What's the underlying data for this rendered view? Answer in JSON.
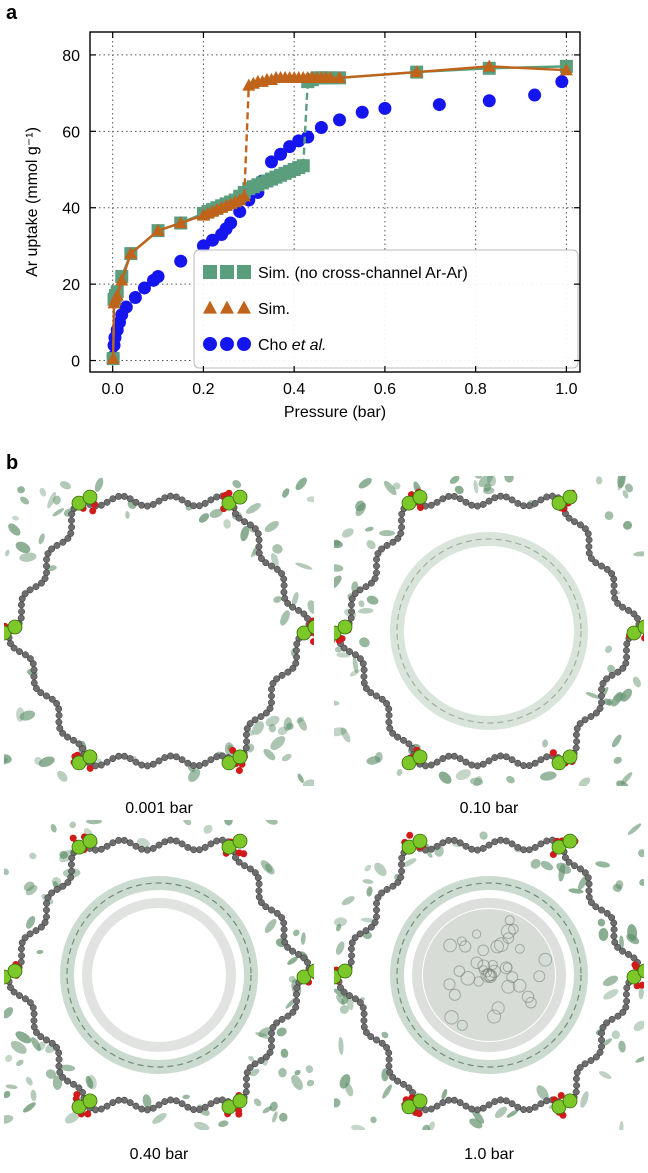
{
  "panel_labels": {
    "a": "a",
    "b": "b"
  },
  "chart_data": {
    "type": "line",
    "xlabel": "Pressure (bar)",
    "ylabel": "Ar uptake (mmol g⁻¹)",
    "xlim": [
      -0.05,
      1.03
    ],
    "ylim": [
      -3,
      86
    ],
    "xticks": [
      0.0,
      0.2,
      0.4,
      0.6,
      0.8,
      1.0
    ],
    "xtick_labels": [
      "0.0",
      "0.2",
      "0.4",
      "0.6",
      "0.8",
      "1.0"
    ],
    "yticks": [
      0,
      20,
      40,
      60,
      80
    ],
    "ytick_labels": [
      "0",
      "20",
      "40",
      "60",
      "80"
    ],
    "grid": true,
    "grid_style": "dotted",
    "legend_position": "lower-right",
    "series": [
      {
        "name": "Sim. (no cross-channel Ar-Ar)",
        "color": "#5a9e7e",
        "marker": "square",
        "x": [
          0.001,
          0.003,
          0.006,
          0.01,
          0.02,
          0.04,
          0.1,
          0.15,
          0.2,
          0.21,
          0.22,
          0.23,
          0.24,
          0.25,
          0.26,
          0.27,
          0.28,
          0.29,
          0.3,
          0.31,
          0.32,
          0.33,
          0.34,
          0.35,
          0.36,
          0.37,
          0.38,
          0.39,
          0.4,
          0.41,
          0.42,
          0.43,
          0.44,
          0.45,
          0.46,
          0.47,
          0.48,
          0.5,
          0.67,
          0.83,
          1.0
        ],
        "y": [
          0.5,
          16,
          17,
          18,
          22,
          28,
          34,
          36,
          38.5,
          39,
          39.5,
          40,
          40.5,
          41,
          41.5,
          42,
          43,
          44,
          45,
          45.5,
          46,
          46.5,
          47,
          47.5,
          48,
          48.5,
          49,
          49.5,
          50,
          50.5,
          51,
          73,
          73.5,
          74,
          74,
          74,
          74,
          74,
          75.5,
          76.5,
          77
        ]
      },
      {
        "name": "Sim.",
        "color": "#c0631b",
        "marker": "triangle",
        "x": [
          0.001,
          0.003,
          0.006,
          0.01,
          0.02,
          0.04,
          0.1,
          0.15,
          0.2,
          0.21,
          0.22,
          0.23,
          0.24,
          0.25,
          0.26,
          0.27,
          0.28,
          0.29,
          0.3,
          0.31,
          0.32,
          0.33,
          0.34,
          0.35,
          0.36,
          0.37,
          0.38,
          0.39,
          0.4,
          0.41,
          0.42,
          0.43,
          0.44,
          0.45,
          0.46,
          0.47,
          0.48,
          0.5,
          0.67,
          0.83,
          1.0
        ],
        "y": [
          0.5,
          15,
          16,
          17,
          21,
          28,
          34,
          36,
          38,
          38.5,
          39,
          39.5,
          40,
          40.5,
          41,
          41.5,
          42,
          43,
          72,
          72.5,
          73,
          73,
          73.5,
          73.5,
          74,
          74,
          74,
          74,
          74,
          74,
          74,
          74,
          74,
          74,
          74,
          74,
          74,
          74,
          75.5,
          77,
          76
        ]
      },
      {
        "name": "Cho et al.",
        "color": "#1515f0",
        "marker": "circle",
        "x": [
          0.001,
          0.003,
          0.005,
          0.01,
          0.015,
          0.02,
          0.03,
          0.05,
          0.07,
          0.09,
          0.1,
          0.15,
          0.2,
          0.22,
          0.24,
          0.25,
          0.26,
          0.28,
          0.3,
          0.32,
          0.33,
          0.35,
          0.37,
          0.39,
          0.41,
          0.43,
          0.46,
          0.5,
          0.55,
          0.6,
          0.72,
          0.83,
          0.93,
          0.99
        ],
        "y": [
          1,
          4,
          6,
          8,
          10,
          12,
          14,
          16.5,
          19,
          21,
          22,
          26,
          30,
          31.5,
          33,
          34.5,
          36,
          39,
          42,
          44,
          47,
          52,
          54,
          56,
          57.5,
          58.5,
          61,
          63,
          65,
          66,
          67,
          68,
          69.5,
          73
        ]
      }
    ]
  },
  "legend": [
    {
      "text": "Sim. (no cross-channel Ar-Ar)"
    },
    {
      "text": "Sim."
    },
    {
      "text_pre": "Cho ",
      "text_italic": "et al."
    }
  ],
  "snapshots": [
    {
      "label": "0.001 bar",
      "fill": 0.0,
      "ring": 0.0,
      "shell": 0.0
    },
    {
      "label": "0.10 bar",
      "fill": 0.0,
      "ring": 0.55,
      "shell": 0.0
    },
    {
      "label": "0.40 bar",
      "fill": 0.0,
      "ring": 0.9,
      "shell": 0.6
    },
    {
      "label": "1.0 bar",
      "fill": 0.85,
      "ring": 0.9,
      "shell": 0.7
    }
  ],
  "colors": {
    "argon_density": "#5f8f6a",
    "framework_carbon": "#6e6e6e",
    "oxygen": "#d31a1a",
    "metal": "#7cc828"
  }
}
